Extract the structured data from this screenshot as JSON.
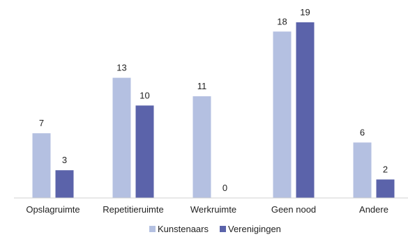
{
  "chart_data": {
    "type": "bar",
    "title": "",
    "xlabel": "",
    "ylabel": "",
    "categories": [
      "Opslagruimte",
      "Repetitieruimte",
      "Werkruimte",
      "Geen nood",
      "Andere"
    ],
    "series": [
      {
        "name": "Kunstenaars",
        "values": [
          7,
          13,
          11,
          18,
          6
        ],
        "color": "#b4c0e1"
      },
      {
        "name": "Verenigingen",
        "values": [
          3,
          10,
          0,
          19,
          2
        ],
        "color": "#5b63aa"
      }
    ],
    "ylim": [
      0,
      19
    ],
    "grid": false,
    "legend": "bottom-center",
    "axis_color": "#d0d0d0"
  }
}
